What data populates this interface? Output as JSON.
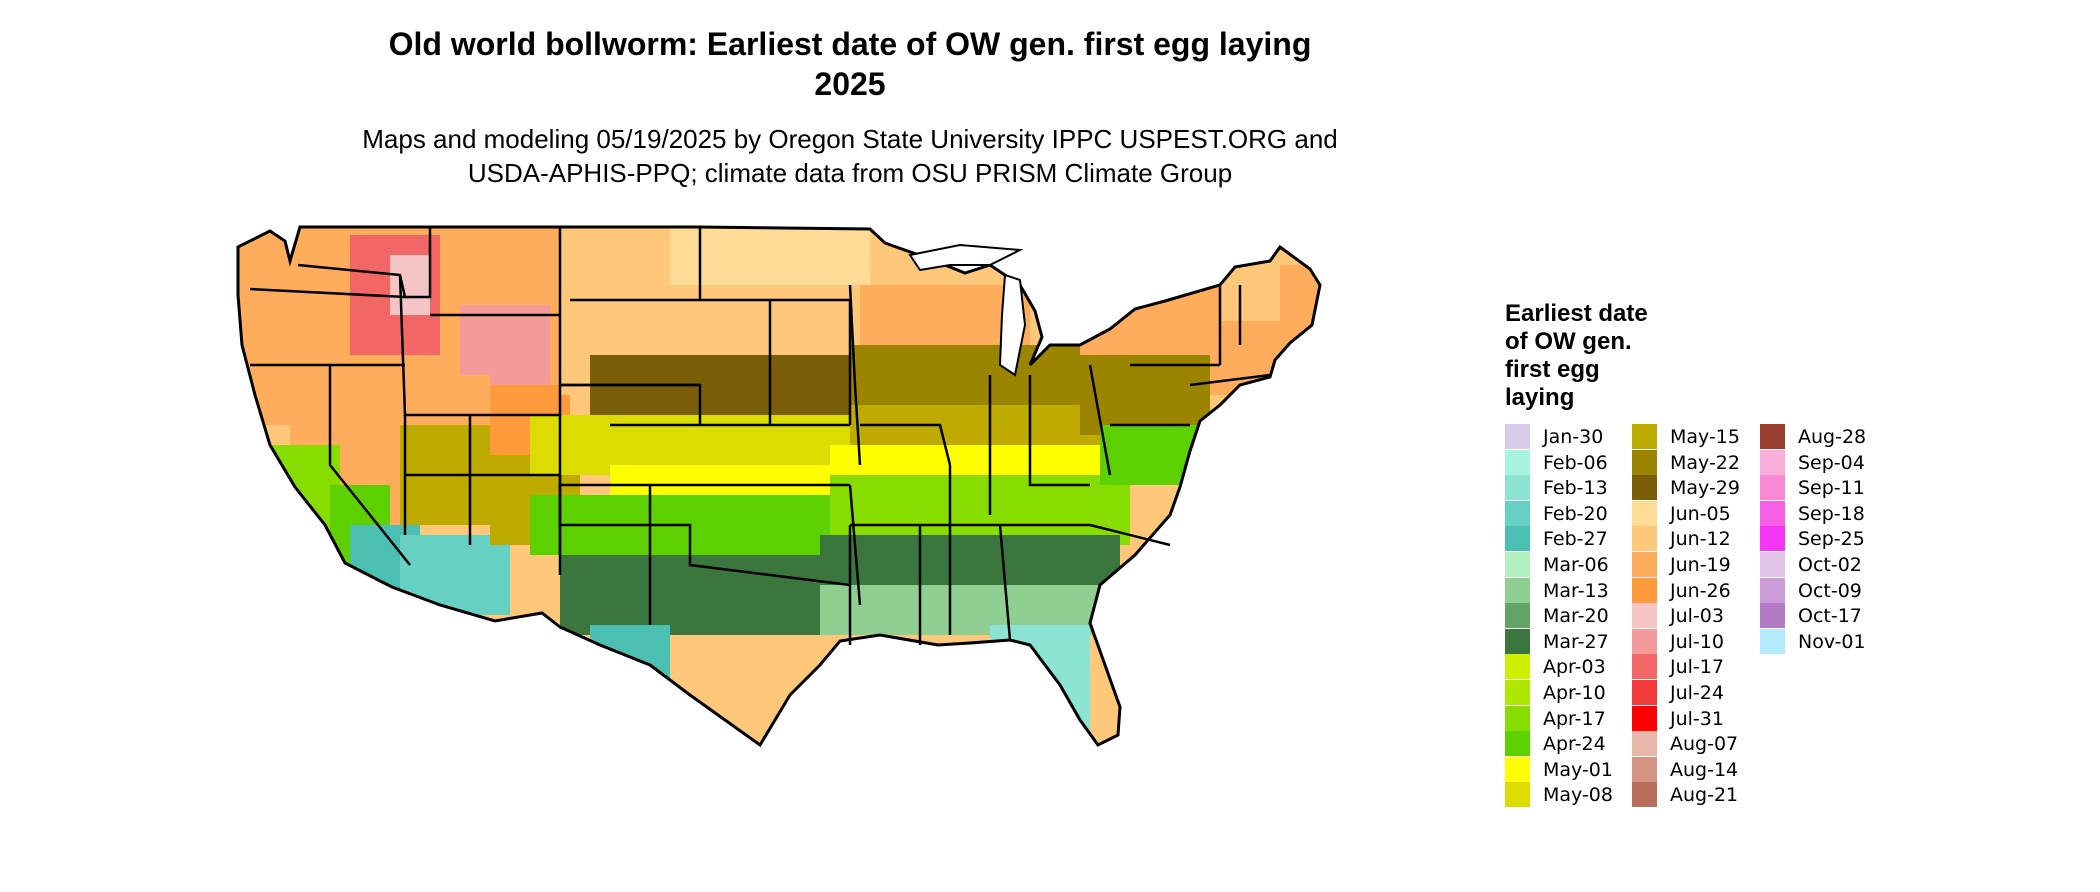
{
  "title": {
    "line1": "Old world bollworm: Earliest date of OW gen. first egg laying",
    "line2": "2025"
  },
  "subtitle": {
    "line1": "Maps and modeling 05/19/2025 by Oregon State University IPPC USPEST.ORG and",
    "line2": "USDA-APHIS-PPQ; climate data from OSU PRISM Climate Group"
  },
  "legend": {
    "title_lines": [
      "Earliest date",
      "of OW gen.",
      "first egg",
      "laying"
    ],
    "items": [
      {
        "label": "Jan-30",
        "color": "#d9cdea"
      },
      {
        "label": "Feb-06",
        "color": "#a8f3df"
      },
      {
        "label": "Feb-13",
        "color": "#8de3d1"
      },
      {
        "label": "Feb-20",
        "color": "#66d1c2"
      },
      {
        "label": "Feb-27",
        "color": "#4bbfb1"
      },
      {
        "label": "Mar-06",
        "color": "#b3f0c0"
      },
      {
        "label": "Mar-13",
        "color": "#8fcf92"
      },
      {
        "label": "Mar-20",
        "color": "#62a466"
      },
      {
        "label": "Mar-27",
        "color": "#3a763e"
      },
      {
        "label": "Apr-03",
        "color": "#ccf000"
      },
      {
        "label": "Apr-10",
        "color": "#aee800"
      },
      {
        "label": "Apr-17",
        "color": "#88dd00"
      },
      {
        "label": "Apr-24",
        "color": "#5cd000"
      },
      {
        "label": "May-01",
        "color": "#ffff00"
      },
      {
        "label": "May-08",
        "color": "#dcdc00"
      },
      {
        "label": "May-15",
        "color": "#bfaa00"
      },
      {
        "label": "May-22",
        "color": "#9b8400"
      },
      {
        "label": "May-29",
        "color": "#7a5e0a"
      },
      {
        "label": "Jun-05",
        "color": "#ffdc96"
      },
      {
        "label": "Jun-12",
        "color": "#ffc77a"
      },
      {
        "label": "Jun-19",
        "color": "#ffad5c"
      },
      {
        "label": "Jun-26",
        "color": "#ff9a3c"
      },
      {
        "label": "Jul-03",
        "color": "#f5c5c5"
      },
      {
        "label": "Jul-10",
        "color": "#f59a9a"
      },
      {
        "label": "Jul-17",
        "color": "#f26666"
      },
      {
        "label": "Jul-24",
        "color": "#f23a3a"
      },
      {
        "label": "Jul-31",
        "color": "#ff0000"
      },
      {
        "label": "Aug-07",
        "color": "#e8b7aa"
      },
      {
        "label": "Aug-14",
        "color": "#d49484"
      },
      {
        "label": "Aug-21",
        "color": "#ba6d5c"
      },
      {
        "label": "Aug-28",
        "color": "#9b3e2f"
      },
      {
        "label": "Sep-04",
        "color": "#f9aedb"
      },
      {
        "label": "Sep-11",
        "color": "#f889d4"
      },
      {
        "label": "Sep-18",
        "color": "#f45fe5"
      },
      {
        "label": "Sep-25",
        "color": "#f535f5"
      },
      {
        "label": "Oct-02",
        "color": "#e2c2e8"
      },
      {
        "label": "Oct-09",
        "color": "#cc9cd8"
      },
      {
        "label": "Oct-17",
        "color": "#b47ac6"
      },
      {
        "label": "Nov-01",
        "color": "#b4ebfa"
      }
    ]
  },
  "map": {
    "region": "Contiguous United States",
    "boundary_color": "#000000"
  }
}
